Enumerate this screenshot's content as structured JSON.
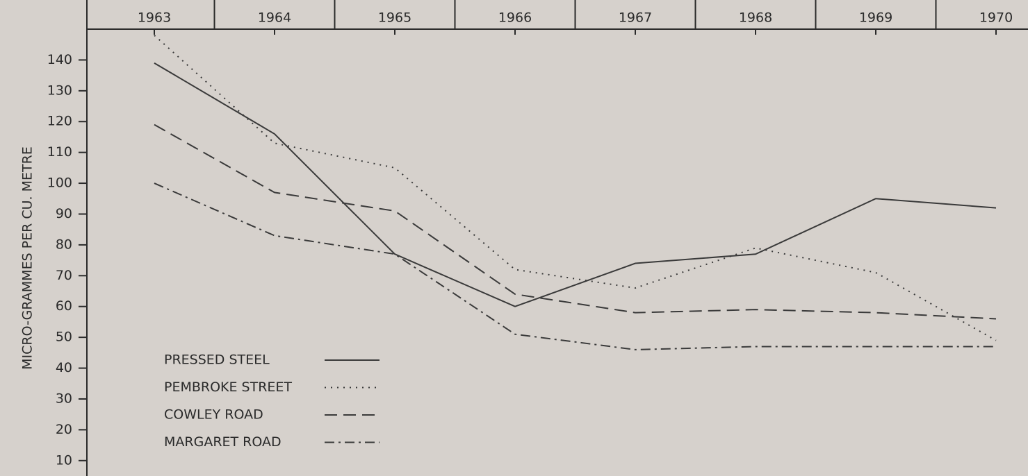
{
  "chart_data": {
    "type": "line",
    "y_label": "MICRO-GRAMMES PER CU. METRE",
    "categories": [
      "1963",
      "1964",
      "1965",
      "1966",
      "1967",
      "1968",
      "1969",
      "1970"
    ],
    "series": [
      {
        "name": "PRESSED STEEL",
        "color": "#3a3a3a",
        "style": "solid",
        "values": [
          139,
          116,
          77,
          60,
          74,
          77,
          95,
          92
        ]
      },
      {
        "name": "PEMBROKE STREET",
        "color": "#3a3a3a",
        "style": "dotted",
        "values": [
          148,
          113,
          105,
          72,
          66,
          79,
          71,
          49
        ]
      },
      {
        "name": "COWLEY ROAD",
        "color": "#3a3a3a",
        "style": "dashed",
        "values": [
          119,
          97,
          91,
          64,
          58,
          59,
          58,
          56
        ]
      },
      {
        "name": "MARGARET ROAD",
        "color": "#3a3a3a",
        "style": "dashdot",
        "values": [
          100,
          83,
          77,
          51,
          46,
          47,
          47,
          47
        ]
      }
    ],
    "ylim": [
      5,
      150
    ],
    "yticks": [
      10,
      20,
      30,
      40,
      50,
      60,
      70,
      80,
      90,
      100,
      110,
      120,
      130,
      140
    ]
  }
}
